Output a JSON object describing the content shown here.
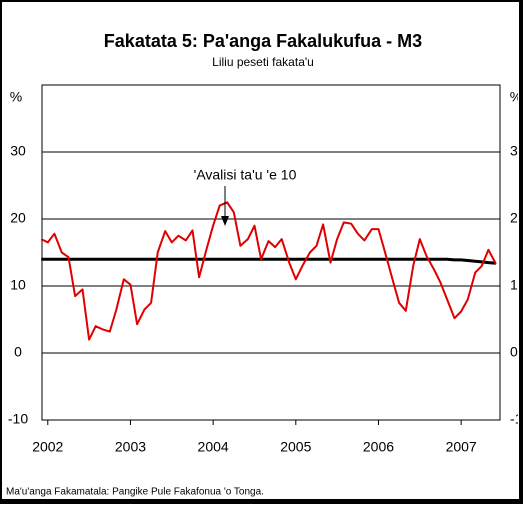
{
  "chart_data": {
    "type": "line",
    "title": "Fakatata 5: Pa'anga Fakalukufua - M3",
    "subtitle": "Liliu peseti fakata'u",
    "y_label": "%",
    "annotation": "'Avalisi ta'u 'e 10",
    "source": "Ma'u'anga Fakamatala: Pangike Pule Fakafonua 'o Tonga.",
    "x": [
      2001.92,
      2002,
      2002.08,
      2002.17,
      2002.25,
      2002.33,
      2002.42,
      2002.5,
      2002.58,
      2002.67,
      2002.75,
      2002.83,
      2002.92,
      2003,
      2003.08,
      2003.17,
      2003.25,
      2003.33,
      2003.42,
      2003.5,
      2003.58,
      2003.67,
      2003.75,
      2003.83,
      2003.92,
      2004,
      2004.08,
      2004.17,
      2004.25,
      2004.33,
      2004.42,
      2004.5,
      2004.58,
      2004.67,
      2004.75,
      2004.83,
      2004.92,
      2005,
      2005.08,
      2005.17,
      2005.25,
      2005.33,
      2005.42,
      2005.5,
      2005.58,
      2005.67,
      2005.75,
      2005.83,
      2005.92,
      2006,
      2006.08,
      2006.17,
      2006.25,
      2006.33,
      2006.42,
      2006.5,
      2006.58,
      2006.67,
      2006.75,
      2006.83,
      2006.92,
      2007,
      2007.08,
      2007.17,
      2007.25,
      2007.33,
      2007.42
    ],
    "series": [
      {
        "color": "#e00000",
        "values": [
          17,
          16.5,
          17.8,
          15,
          14.3,
          8.5,
          9.5,
          2,
          4,
          3.5,
          3.2,
          6.5,
          11,
          10.2,
          4.3,
          6.5,
          7.5,
          15,
          18.2,
          16.5,
          17.5,
          16.8,
          18.3,
          11.3,
          15.5,
          19,
          22,
          22.5,
          21,
          16,
          17,
          19,
          14,
          16.7,
          15.8,
          17,
          13.5,
          11,
          13,
          15,
          16,
          19.2,
          13.5,
          17,
          19.5,
          19.3,
          17.8,
          16.8,
          18.5,
          18.5,
          15,
          11,
          7.5,
          6.3,
          13,
          17,
          14.5,
          12.5,
          10.5,
          8,
          5.2,
          6.2,
          8,
          12,
          13,
          15.4,
          13.3
        ]
      },
      {
        "color": "#000000",
        "values": [
          14,
          14,
          14,
          14,
          14,
          14,
          14,
          14,
          14,
          14,
          14,
          14,
          14,
          14,
          14,
          14,
          14,
          14,
          14,
          14,
          14,
          14,
          14,
          14,
          14,
          14,
          14,
          14,
          14,
          14,
          14,
          14,
          14,
          14,
          14,
          14,
          14,
          14,
          14,
          14,
          14,
          14,
          14,
          14,
          14,
          14,
          14,
          14,
          14,
          14,
          14,
          14,
          14,
          14,
          14,
          14,
          14,
          14,
          14,
          14,
          13.9,
          13.9,
          13.8,
          13.7,
          13.6,
          13.5,
          13.4
        ]
      }
    ],
    "xlim": [
      2001.93,
      2007.47
    ],
    "xticks": [
      2002,
      2003,
      2004,
      2005,
      2006,
      2007
    ],
    "ylim": [
      -10,
      40
    ],
    "yticks": [
      -10,
      0,
      10,
      20,
      30
    ],
    "grid": true
  }
}
